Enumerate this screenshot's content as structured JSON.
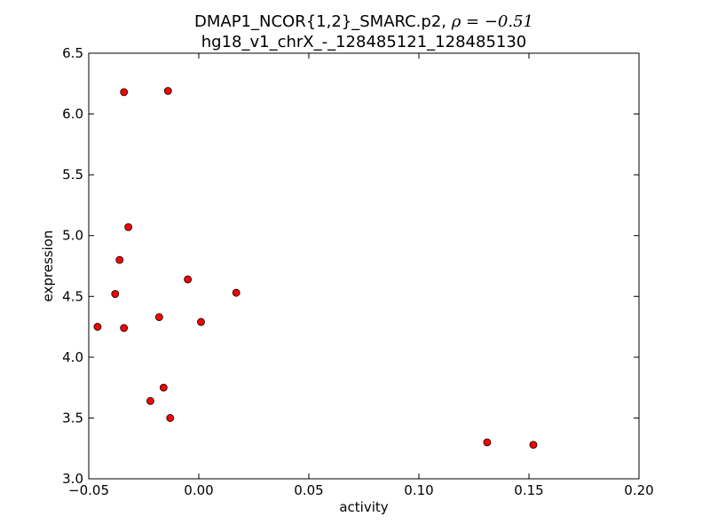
{
  "chart_data": {
    "type": "scatter",
    "title": "DMAP1_NCOR{1,2}_SMARC.p2, ",
    "title_rho": "ρ = −0.51",
    "subtitle": "hg18_v1_chrX_-_128485121_128485130",
    "xlabel": "activity",
    "ylabel": "expression",
    "xlim": [
      -0.05,
      0.2
    ],
    "ylim": [
      3.0,
      6.5
    ],
    "xticks": [
      -0.05,
      0.0,
      0.05,
      0.1,
      0.15,
      0.2
    ],
    "xtick_labels": [
      "−0.05",
      "0.00",
      "0.05",
      "0.10",
      "0.15",
      "0.20"
    ],
    "yticks": [
      3.0,
      3.5,
      4.0,
      4.5,
      5.0,
      5.5,
      6.0,
      6.5
    ],
    "ytick_labels": [
      "3.0",
      "3.5",
      "4.0",
      "4.5",
      "5.0",
      "5.5",
      "6.0",
      "6.5"
    ],
    "grid": false,
    "marker_color": "#ff0000",
    "marker_edge": "#000000",
    "points": [
      {
        "x": -0.034,
        "y": 6.18
      },
      {
        "x": -0.014,
        "y": 6.19
      },
      {
        "x": -0.032,
        "y": 5.07
      },
      {
        "x": -0.036,
        "y": 4.8
      },
      {
        "x": -0.005,
        "y": 4.64
      },
      {
        "x": -0.038,
        "y": 4.52
      },
      {
        "x": 0.017,
        "y": 4.53
      },
      {
        "x": -0.018,
        "y": 4.33
      },
      {
        "x": 0.001,
        "y": 4.29
      },
      {
        "x": -0.046,
        "y": 4.25
      },
      {
        "x": -0.034,
        "y": 4.24
      },
      {
        "x": -0.016,
        "y": 3.75
      },
      {
        "x": -0.022,
        "y": 3.64
      },
      {
        "x": -0.013,
        "y": 3.5
      },
      {
        "x": 0.131,
        "y": 3.3
      },
      {
        "x": 0.152,
        "y": 3.28
      }
    ]
  }
}
